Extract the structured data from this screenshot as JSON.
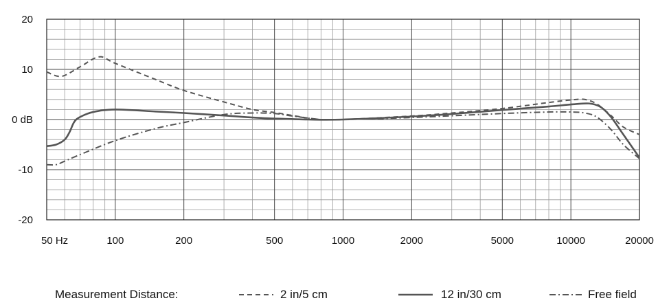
{
  "chart_data": {
    "type": "line",
    "title": "",
    "xlabel": "",
    "ylabel": "",
    "x_scale": "log",
    "xlim": [
      50,
      20000
    ],
    "ylim": [
      -20,
      20
    ],
    "grid": true,
    "legend_position": "bottom",
    "x_tick_values": [
      50,
      100,
      200,
      500,
      1000,
      2000,
      5000,
      10000,
      20000
    ],
    "x_tick_labels": [
      "50 Hz",
      "100",
      "200",
      "500",
      "1000",
      "2000",
      "5000",
      "10000",
      "20000"
    ],
    "y_tick_values": [
      20,
      10,
      0,
      -10,
      -20
    ],
    "y_tick_labels": [
      "20",
      "10",
      "0 dB",
      "-10",
      "-20"
    ],
    "legend_title": "Measurement Distance:",
    "series": [
      {
        "name": "2 in/5 cm",
        "style": "dashed",
        "color": "#555555",
        "points": [
          [
            50,
            9.5
          ],
          [
            58,
            8.6
          ],
          [
            70,
            10.5
          ],
          [
            85,
            12.5
          ],
          [
            100,
            11.2
          ],
          [
            150,
            8
          ],
          [
            200,
            5.8
          ],
          [
            300,
            3.5
          ],
          [
            400,
            2
          ],
          [
            500,
            1.4
          ],
          [
            600,
            0.8
          ],
          [
            700,
            0.3
          ],
          [
            800,
            0
          ],
          [
            1000,
            0
          ],
          [
            2000,
            0.7
          ],
          [
            3000,
            1.3
          ],
          [
            5000,
            2.2
          ],
          [
            8000,
            3.4
          ],
          [
            10000,
            3.9
          ],
          [
            11500,
            4
          ],
          [
            13000,
            3.1
          ],
          [
            15000,
            0.8
          ],
          [
            17000,
            -1.5
          ],
          [
            20000,
            -3
          ]
        ]
      },
      {
        "name": "12 in/30 cm",
        "style": "solid",
        "color": "#555555",
        "points": [
          [
            50,
            -5.3
          ],
          [
            55,
            -5
          ],
          [
            60,
            -4
          ],
          [
            63,
            -2.5
          ],
          [
            66,
            -0.5
          ],
          [
            70,
            0.5
          ],
          [
            80,
            1.5
          ],
          [
            100,
            2
          ],
          [
            150,
            1.6
          ],
          [
            200,
            1.3
          ],
          [
            300,
            0.8
          ],
          [
            400,
            0.4
          ],
          [
            500,
            0.2
          ],
          [
            700,
            0
          ],
          [
            1000,
            0
          ],
          [
            2000,
            0.6
          ],
          [
            3000,
            1.1
          ],
          [
            5000,
            1.9
          ],
          [
            8000,
            2.6
          ],
          [
            10000,
            3
          ],
          [
            12000,
            3.2
          ],
          [
            13500,
            2.5
          ],
          [
            15000,
            0.5
          ],
          [
            17000,
            -3
          ],
          [
            20000,
            -7.6
          ]
        ]
      },
      {
        "name": "Free field",
        "style": "dash-dot",
        "color": "#555555",
        "points": [
          [
            50,
            -9
          ],
          [
            55,
            -9
          ],
          [
            60,
            -8.3
          ],
          [
            70,
            -7
          ],
          [
            100,
            -4.2
          ],
          [
            150,
            -1.8
          ],
          [
            200,
            -0.6
          ],
          [
            300,
            1
          ],
          [
            400,
            1.3
          ],
          [
            500,
            1.2
          ],
          [
            600,
            0.7
          ],
          [
            800,
            0
          ],
          [
            1000,
            0
          ],
          [
            2000,
            0.4
          ],
          [
            5000,
            1.2
          ],
          [
            8000,
            1.5
          ],
          [
            10000,
            1.5
          ],
          [
            11500,
            1.3
          ],
          [
            13000,
            0.5
          ],
          [
            15000,
            -2
          ],
          [
            17000,
            -5
          ],
          [
            20000,
            -7.8
          ]
        ]
      }
    ]
  }
}
